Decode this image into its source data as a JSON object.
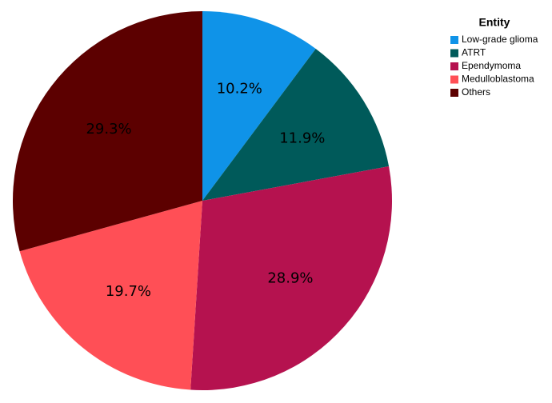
{
  "chart_data": {
    "type": "pie",
    "legend_title": "Entity",
    "categories": [
      "Low-grade glioma",
      "ATRT",
      "Ependymoma",
      "Medulloblastoma",
      "Others"
    ],
    "values": [
      10.2,
      11.9,
      28.9,
      19.7,
      29.3
    ],
    "value_labels": [
      "10.2%",
      "11.9%",
      "28.9%",
      "19.7%",
      "29.3%"
    ],
    "colors": [
      "#0f93e8",
      "#005a5a",
      "#b5124f",
      "#ff4f56",
      "#5c0000"
    ],
    "legend": "right"
  }
}
